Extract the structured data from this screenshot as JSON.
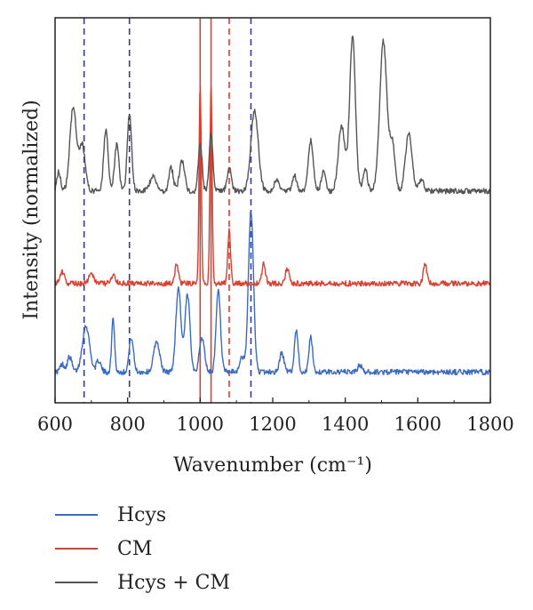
{
  "chart_data": {
    "type": "line",
    "xlabel": "Wavenumber (cm⁻¹)",
    "ylabel": "Intensity (normalized)",
    "xlim": [
      600,
      1800
    ],
    "x_ticks": [
      "600",
      "800",
      "1000",
      "1200",
      "1400",
      "1600",
      "1800"
    ],
    "y_ticks_labeled": false,
    "grid": false,
    "legend_position": "bottom",
    "series": [
      {
        "name": "Hcys",
        "color": "#3a6bbf",
        "baseline": 0.08,
        "peaks": [
          [
            620,
            0.02,
            6
          ],
          [
            640,
            0.04,
            6
          ],
          [
            685,
            0.12,
            10
          ],
          [
            720,
            0.03,
            6
          ],
          [
            760,
            0.14,
            4
          ],
          [
            810,
            0.09,
            6
          ],
          [
            880,
            0.08,
            8
          ],
          [
            940,
            0.22,
            7
          ],
          [
            965,
            0.2,
            7
          ],
          [
            1005,
            0.09,
            7
          ],
          [
            1050,
            0.21,
            6
          ],
          [
            1115,
            0.04,
            6
          ],
          [
            1140,
            0.42,
            7
          ],
          [
            1225,
            0.05,
            6
          ],
          [
            1265,
            0.11,
            5
          ],
          [
            1305,
            0.09,
            5
          ],
          [
            1440,
            0.02,
            5
          ]
        ]
      },
      {
        "name": "CM",
        "color": "#d94030",
        "baseline": 0.31,
        "peaks": [
          [
            620,
            0.03,
            6
          ],
          [
            700,
            0.03,
            6
          ],
          [
            760,
            0.02,
            6
          ],
          [
            935,
            0.05,
            5
          ],
          [
            1000,
            0.52,
            3
          ],
          [
            1030,
            0.52,
            3
          ],
          [
            1080,
            0.14,
            4
          ],
          [
            1175,
            0.05,
            5
          ],
          [
            1240,
            0.04,
            5
          ],
          [
            1620,
            0.05,
            5
          ]
        ]
      },
      {
        "name": "Hcys + CM",
        "color": "#555555",
        "baseline": 0.55,
        "peaks": [
          [
            610,
            0.05,
            5
          ],
          [
            650,
            0.22,
            9
          ],
          [
            675,
            0.12,
            8
          ],
          [
            740,
            0.16,
            6
          ],
          [
            770,
            0.12,
            6
          ],
          [
            805,
            0.2,
            6
          ],
          [
            870,
            0.04,
            8
          ],
          [
            920,
            0.06,
            6
          ],
          [
            950,
            0.08,
            7
          ],
          [
            1000,
            0.13,
            5
          ],
          [
            1030,
            0.15,
            5
          ],
          [
            1080,
            0.06,
            6
          ],
          [
            1150,
            0.21,
            10
          ],
          [
            1210,
            0.03,
            6
          ],
          [
            1260,
            0.04,
            6
          ],
          [
            1305,
            0.13,
            7
          ],
          [
            1340,
            0.05,
            6
          ],
          [
            1390,
            0.17,
            9
          ],
          [
            1420,
            0.4,
            8
          ],
          [
            1455,
            0.06,
            6
          ],
          [
            1505,
            0.39,
            10
          ],
          [
            1530,
            0.12,
            7
          ],
          [
            1575,
            0.15,
            9
          ],
          [
            1610,
            0.03,
            6
          ]
        ]
      }
    ],
    "reference_lines": [
      {
        "x": 680,
        "color": "#3a3a8c",
        "style": "dashed"
      },
      {
        "x": 805,
        "color": "#3a3a8c",
        "style": "dashed"
      },
      {
        "x": 1000,
        "color": "#d94030",
        "style": "solid"
      },
      {
        "x": 1030,
        "color": "#d94030",
        "style": "solid"
      },
      {
        "x": 1080,
        "color": "#d94030",
        "style": "dashed"
      },
      {
        "x": 1140,
        "color": "#3a3a8c",
        "style": "dashed"
      }
    ]
  },
  "legend": {
    "items": [
      {
        "label": "Hcys",
        "color": "#3a6bbf"
      },
      {
        "label": "CM",
        "color": "#d94030"
      },
      {
        "label": "Hcys + CM",
        "color": "#555555"
      }
    ]
  }
}
